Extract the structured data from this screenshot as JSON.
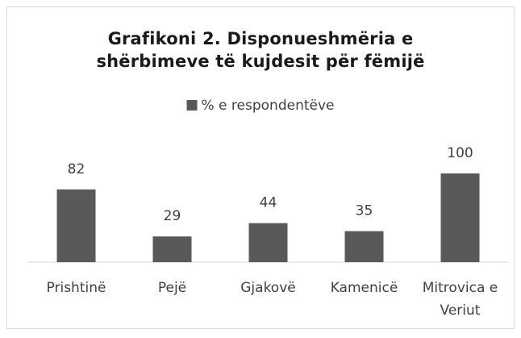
{
  "chart_data": {
    "type": "bar",
    "title": "Grafikoni 2. Disponueshmëria e shërbimeve të kujdesit për fëmijë",
    "categories": [
      "Prishtinë",
      "Pejë",
      "Gjakovë",
      "Kamenicë",
      "Mitrovica e Veriut"
    ],
    "series": [
      {
        "name": "% e respondentëve",
        "color": "#595959",
        "values": [
          82,
          29,
          44,
          35,
          100
        ]
      }
    ]
  }
}
